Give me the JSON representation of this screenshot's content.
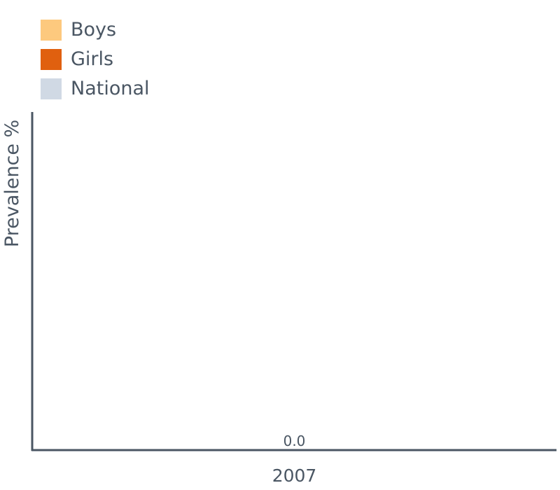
{
  "chart_data": {
    "type": "bar",
    "title": "",
    "xlabel": "",
    "ylabel": "Prevalence %",
    "categories": [
      "2007"
    ],
    "series": [
      {
        "name": "Boys",
        "values": [
          null
        ],
        "color": "#fdc97e"
      },
      {
        "name": "Girls",
        "values": [
          null
        ],
        "color": "#e0600f"
      },
      {
        "name": "National",
        "values": [
          0.0
        ],
        "color": "#d0d9e4"
      }
    ],
    "data_labels": [
      "0.0"
    ],
    "ylim": [
      0,
      100
    ],
    "grid": false,
    "legend": "top-left",
    "axis_color": "#4a5663"
  }
}
